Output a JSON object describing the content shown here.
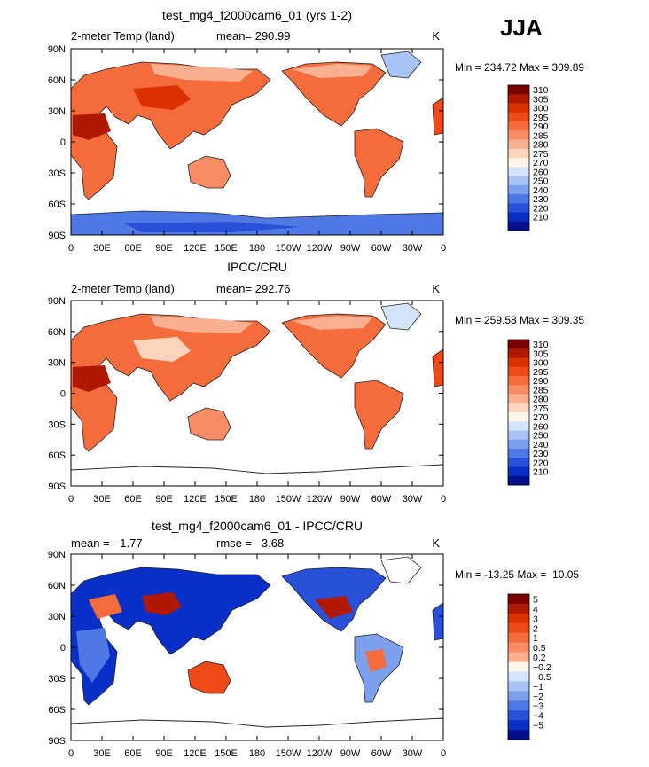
{
  "season": "JJA",
  "chart_data": [
    {
      "type": "heatmap",
      "title": "test_mg4_f2000cam6_01 (yrs 1-2)",
      "left_label": "2-meter Temp (land)",
      "stat_label": "mean= 290.99",
      "units": "K",
      "minmax": "Min = 234.72 Max = 309.89",
      "lat_ticks": [
        "90N",
        "60N",
        "30N",
        "0",
        "30S",
        "60S",
        "90S"
      ],
      "lon_ticks": [
        "0",
        "30E",
        "60E",
        "90E",
        "120E",
        "150E",
        "180",
        "150W",
        "120W",
        "90W",
        "60W",
        "30W",
        "0"
      ],
      "colorbar": {
        "labels": [
          "310",
          "305",
          "300",
          "295",
          "290",
          "285",
          "280",
          "275",
          "270",
          "260",
          "250",
          "240",
          "230",
          "220",
          "210"
        ],
        "colors": [
          "#7a0000",
          "#b01800",
          "#dc3000",
          "#f04a18",
          "#f46c3c",
          "#f88c64",
          "#fab090",
          "#fcd4bc",
          "#fff4ea",
          "#d4e4fa",
          "#a8c4f4",
          "#7ca0ec",
          "#5078e4",
          "#2850d8",
          "#0830c8",
          "#00108c"
        ]
      }
    },
    {
      "type": "heatmap",
      "title": "IPCC/CRU",
      "left_label": "2-meter Temp (land)",
      "stat_label": "mean= 292.76",
      "units": "K",
      "minmax": "Min = 259.58 Max = 309.35",
      "lat_ticks": [
        "90N",
        "60N",
        "30N",
        "0",
        "30S",
        "60S",
        "90S"
      ],
      "lon_ticks": [
        "0",
        "30E",
        "60E",
        "90E",
        "120E",
        "150E",
        "180",
        "150W",
        "120W",
        "90W",
        "60W",
        "30W",
        "0"
      ],
      "colorbar": {
        "labels": [
          "310",
          "305",
          "300",
          "295",
          "290",
          "285",
          "280",
          "275",
          "270",
          "260",
          "250",
          "240",
          "230",
          "220",
          "210"
        ],
        "colors": [
          "#7a0000",
          "#b01800",
          "#dc3000",
          "#f04a18",
          "#f46c3c",
          "#f88c64",
          "#fab090",
          "#fcd4bc",
          "#fff4ea",
          "#d4e4fa",
          "#a8c4f4",
          "#7ca0ec",
          "#5078e4",
          "#2850d8",
          "#0830c8",
          "#00108c"
        ]
      }
    },
    {
      "type": "heatmap",
      "title": "test_mg4_f2000cam6_01 - IPCC/CRU",
      "left_label": "mean =  -1.77",
      "stat_label": "rmse =   3.68",
      "units": "K",
      "minmax": "Min = -13.25 Max =  10.05",
      "lat_ticks": [
        "90N",
        "60N",
        "30N",
        "0",
        "30S",
        "60S",
        "90S"
      ],
      "lon_ticks": [
        "0",
        "30E",
        "60E",
        "90E",
        "120E",
        "150E",
        "180",
        "150W",
        "120W",
        "90W",
        "60W",
        "30W",
        "0"
      ],
      "colorbar": {
        "labels": [
          "5",
          "4",
          "3",
          "2",
          "1",
          "0.5",
          "0.2",
          "−0.2",
          "−0.5",
          "−1",
          "−2",
          "−3",
          "−4",
          "−5"
        ],
        "colors": [
          "#7a0000",
          "#b01800",
          "#dc3000",
          "#f04a18",
          "#f46c3c",
          "#f88c64",
          "#fab090",
          "#fff4ea",
          "#d4e4fa",
          "#a8c4f4",
          "#7ca0ec",
          "#5078e4",
          "#2850d8",
          "#0830c8",
          "#00108c"
        ]
      }
    }
  ]
}
